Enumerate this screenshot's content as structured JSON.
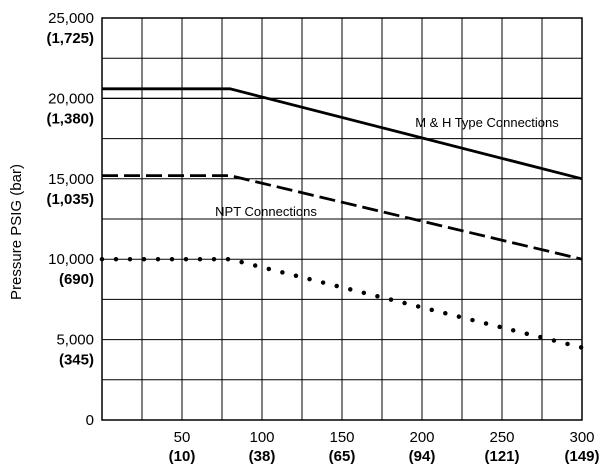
{
  "chart_data": {
    "type": "line",
    "ylabel": "Pressure PSIG (bar)",
    "xlim": [
      0,
      300
    ],
    "ylim": [
      0,
      25000
    ],
    "grid": true,
    "x_ticks": [
      {
        "value": 50,
        "label": "50",
        "sub": "(10)"
      },
      {
        "value": 100,
        "label": "100",
        "sub": "(38)"
      },
      {
        "value": 150,
        "label": "150",
        "sub": "(65)"
      },
      {
        "value": 200,
        "label": "200",
        "sub": "(94)"
      },
      {
        "value": 250,
        "label": "250",
        "sub": "(121)"
      },
      {
        "value": 300,
        "label": "300",
        "sub": "(149)"
      }
    ],
    "y_ticks": [
      {
        "value": 0,
        "label": "0",
        "sub": ""
      },
      {
        "value": 5000,
        "label": "5,000",
        "sub": "(345)"
      },
      {
        "value": 10000,
        "label": "10,000",
        "sub": "(690)"
      },
      {
        "value": 15000,
        "label": "15,000",
        "sub": "(1,035)"
      },
      {
        "value": 20000,
        "label": "20,000",
        "sub": "(1,380)"
      },
      {
        "value": 25000,
        "label": "25,000",
        "sub": "(1,725)"
      }
    ],
    "series": [
      {
        "name": "M & H Type Connections",
        "style": "solid",
        "x": [
          0,
          80,
          300
        ],
        "y": [
          20600,
          20600,
          15000
        ]
      },
      {
        "name": "NPT Connections",
        "style": "dashed",
        "x": [
          0,
          80,
          300
        ],
        "y": [
          15200,
          15200,
          10000
        ]
      },
      {
        "name": "",
        "style": "dotted",
        "x": [
          0,
          80,
          300
        ],
        "y": [
          10000,
          10000,
          4500
        ]
      }
    ],
    "reference_line": {
      "value": 20000,
      "label": "20,000"
    }
  }
}
